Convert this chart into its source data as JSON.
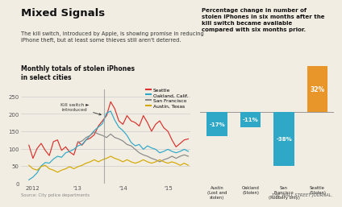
{
  "title": "Mixed Signals",
  "subtitle": "The kill switch, introduced by Apple, is showing promise in reducing\niPhone theft, but at least some thieves still aren't deterred.",
  "line_chart_title": "Monthly totals of stolen iPhones\nin select cities",
  "background_color": "#f2ede3",
  "cities": [
    "Seattle",
    "Oakland, Calif.",
    "San Francisco",
    "Austin, Texas"
  ],
  "line_colors": [
    "#d9312b",
    "#2fa8c8",
    "#888888",
    "#d4a800"
  ],
  "kill_switch_x": 13.58,
  "kill_switch_label": "Kill switch ►\nintroduced",
  "x_ticks": [
    12,
    13,
    14,
    15
  ],
  "x_tick_labels": [
    "2012",
    "'13",
    "'14",
    "'15"
  ],
  "y_ticks": [
    0,
    50,
    100,
    150,
    200,
    250
  ],
  "ylim": [
    0,
    270
  ],
  "seattle_data": [
    110,
    72,
    100,
    115,
    95,
    80,
    120,
    125,
    95,
    105,
    90,
    82,
    120,
    110,
    125,
    130,
    140,
    165,
    180,
    195,
    235,
    215,
    180,
    170,
    195,
    180,
    175,
    165,
    195,
    175,
    150,
    170,
    180,
    160,
    150,
    125,
    105,
    115,
    125,
    128
  ],
  "oakland_data": [
    10,
    18,
    30,
    50,
    60,
    58,
    70,
    78,
    75,
    88,
    92,
    98,
    108,
    112,
    125,
    138,
    152,
    162,
    172,
    202,
    208,
    182,
    162,
    152,
    138,
    118,
    108,
    112,
    98,
    108,
    102,
    98,
    88,
    92,
    98,
    92,
    88,
    92,
    98,
    92
  ],
  "sf_data": [
    null,
    null,
    null,
    null,
    null,
    null,
    null,
    null,
    null,
    null,
    null,
    null,
    118,
    122,
    132,
    138,
    148,
    142,
    138,
    132,
    142,
    132,
    128,
    122,
    112,
    108,
    98,
    88,
    82,
    78,
    72,
    68,
    62,
    68,
    72,
    78,
    72,
    78,
    82,
    78
  ],
  "austin_data": [
    52,
    42,
    38,
    48,
    52,
    42,
    38,
    32,
    38,
    42,
    48,
    42,
    48,
    52,
    58,
    62,
    68,
    62,
    68,
    72,
    78,
    72,
    68,
    62,
    68,
    62,
    58,
    62,
    68,
    62,
    58,
    62,
    68,
    62,
    58,
    62,
    58,
    52,
    58,
    52
  ],
  "bar_chart_title": "Percentage change in number of\nstolen iPhones in six months after the\nkill switch became available\ncompared with six months prior.",
  "bar_categories": [
    "Austin\n(Lost and\nstolen)",
    "Oakland\n(Stolen)",
    "San\nFrancisco\n(Robbery only)",
    "Seattle\n(Stolen)"
  ],
  "bar_values": [
    -17,
    -11,
    -38,
    32
  ],
  "bar_colors": [
    "#2fa8c8",
    "#2fa8c8",
    "#2fa8c8",
    "#e8952a"
  ],
  "bar_labels": [
    "-17%",
    "-11%",
    "-38%",
    "32%"
  ],
  "source": "Source: City police departments",
  "wsj": "THE WALL STREET JOURNAL."
}
